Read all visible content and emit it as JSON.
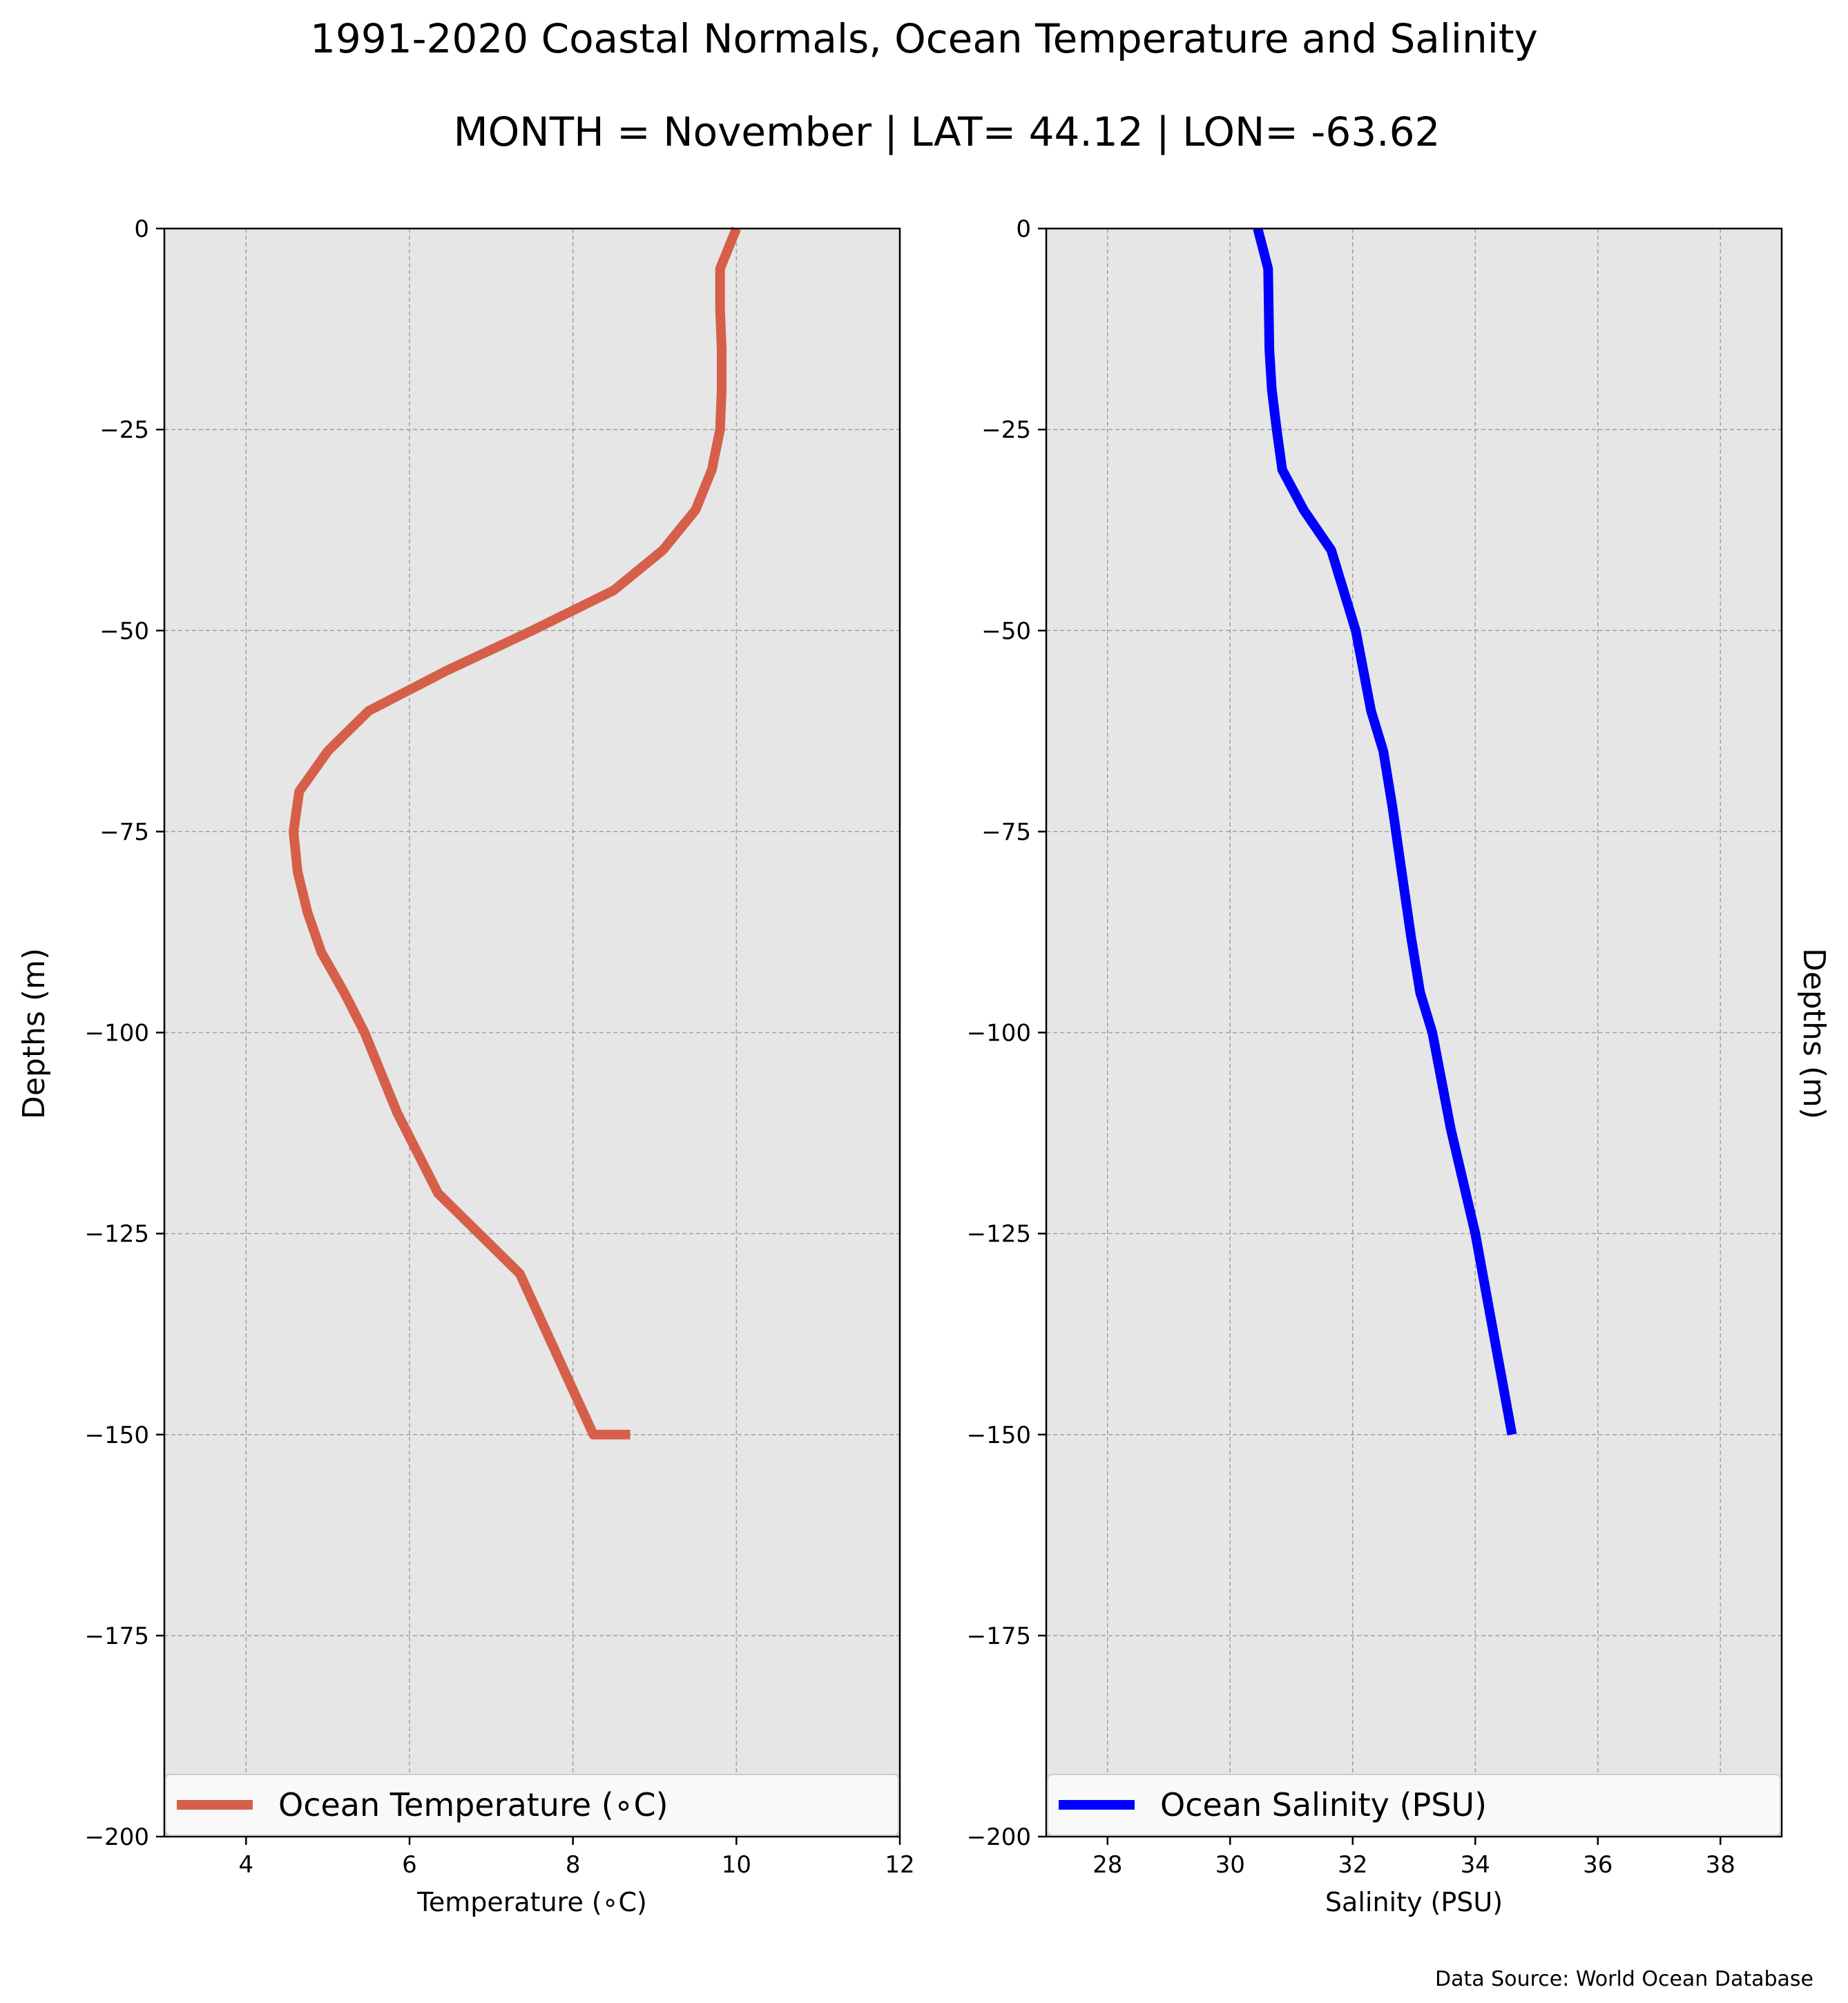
{
  "figure": {
    "title": "1991-2020 Coastal Normals, Ocean Temperature and Salinity",
    "subtitle": "MONTH = November | LAT= 44.12 | LON= -63.62",
    "source_note": "Data Source: World Ocean Database",
    "ylabel_left": "Depths (m)",
    "ylabel_right": "Depths (m)",
    "colors": {
      "plot_background": "#e6e6e6",
      "temperature_line": "#d65f4a",
      "salinity_line": "#0000ff",
      "grid": "#a0a0a0"
    }
  },
  "chart_data": [
    {
      "type": "line",
      "orientation": "profile (x = value, y = depth)",
      "xlabel": "Temperature ($^\\circ$C)",
      "xlabel_display": "Temperature (∘C)",
      "ylabel": "Depths (m)",
      "xlim": [
        3,
        12
      ],
      "ylim": [
        -200,
        0
      ],
      "xticks": [
        4,
        6,
        8,
        10,
        12
      ],
      "xtick_labels": [
        "4",
        "6",
        "8",
        "10",
        "12"
      ],
      "yticks": [
        0,
        -25,
        -50,
        -75,
        -100,
        -125,
        -150,
        -175,
        -200
      ],
      "ytick_labels": [
        "0",
        "−25",
        "−50",
        "−75",
        "−100",
        "−125",
        "−150",
        "−175",
        "−200"
      ],
      "grid": true,
      "legend_position": "bottom",
      "series": [
        {
          "name": "Ocean Temperature (∘C)",
          "color": "#d65f4a",
          "x": [
            10.0,
            9.8,
            9.8,
            9.82,
            9.82,
            9.8,
            9.7,
            9.5,
            9.1,
            8.5,
            7.5,
            6.45,
            5.5,
            5.0,
            4.65,
            4.58,
            4.63,
            4.75,
            4.92,
            5.2,
            5.45,
            5.85,
            6.35,
            6.85,
            7.35,
            7.8,
            8.25,
            8.7
          ],
          "y": [
            0,
            -5,
            -10,
            -15,
            -20,
            -25,
            -30,
            -35,
            -40,
            -45,
            -50,
            -55,
            -60,
            -65,
            -70,
            -75,
            -80,
            -85,
            -90,
            -95,
            -100,
            -110,
            -120,
            -125,
            -130,
            -140,
            -150,
            -150
          ]
        }
      ]
    },
    {
      "type": "line",
      "orientation": "profile (x = value, y = depth)",
      "xlabel": "Salinity (PSU)",
      "ylabel": "Depths (m)",
      "xlim": [
        27,
        39
      ],
      "ylim": [
        -200,
        0
      ],
      "xticks": [
        28,
        30,
        32,
        34,
        36,
        38
      ],
      "xtick_labels": [
        "28",
        "30",
        "32",
        "34",
        "36",
        "38"
      ],
      "yticks": [
        0,
        -25,
        -50,
        -75,
        -100,
        -125,
        -150,
        -175,
        -200
      ],
      "ytick_labels": [
        "0",
        "−25",
        "−50",
        "−75",
        "−100",
        "−125",
        "−150",
        "−175",
        "−200"
      ],
      "grid": true,
      "legend_position": "bottom",
      "series": [
        {
          "name": "Ocean Salinity (PSU)",
          "color": "#0000ff",
          "x": [
            30.45,
            30.62,
            30.63,
            30.64,
            30.68,
            30.76,
            30.85,
            31.2,
            31.65,
            32.05,
            32.3,
            32.5,
            32.65,
            32.8,
            32.95,
            33.1,
            33.3,
            33.6,
            34.0,
            34.6
          ],
          "y": [
            0,
            -5,
            -10,
            -15,
            -20,
            -25,
            -30,
            -35,
            -40,
            -50,
            -60,
            -65,
            -72,
            -80,
            -88,
            -95,
            -100,
            -112,
            -125,
            -150
          ]
        }
      ]
    }
  ]
}
